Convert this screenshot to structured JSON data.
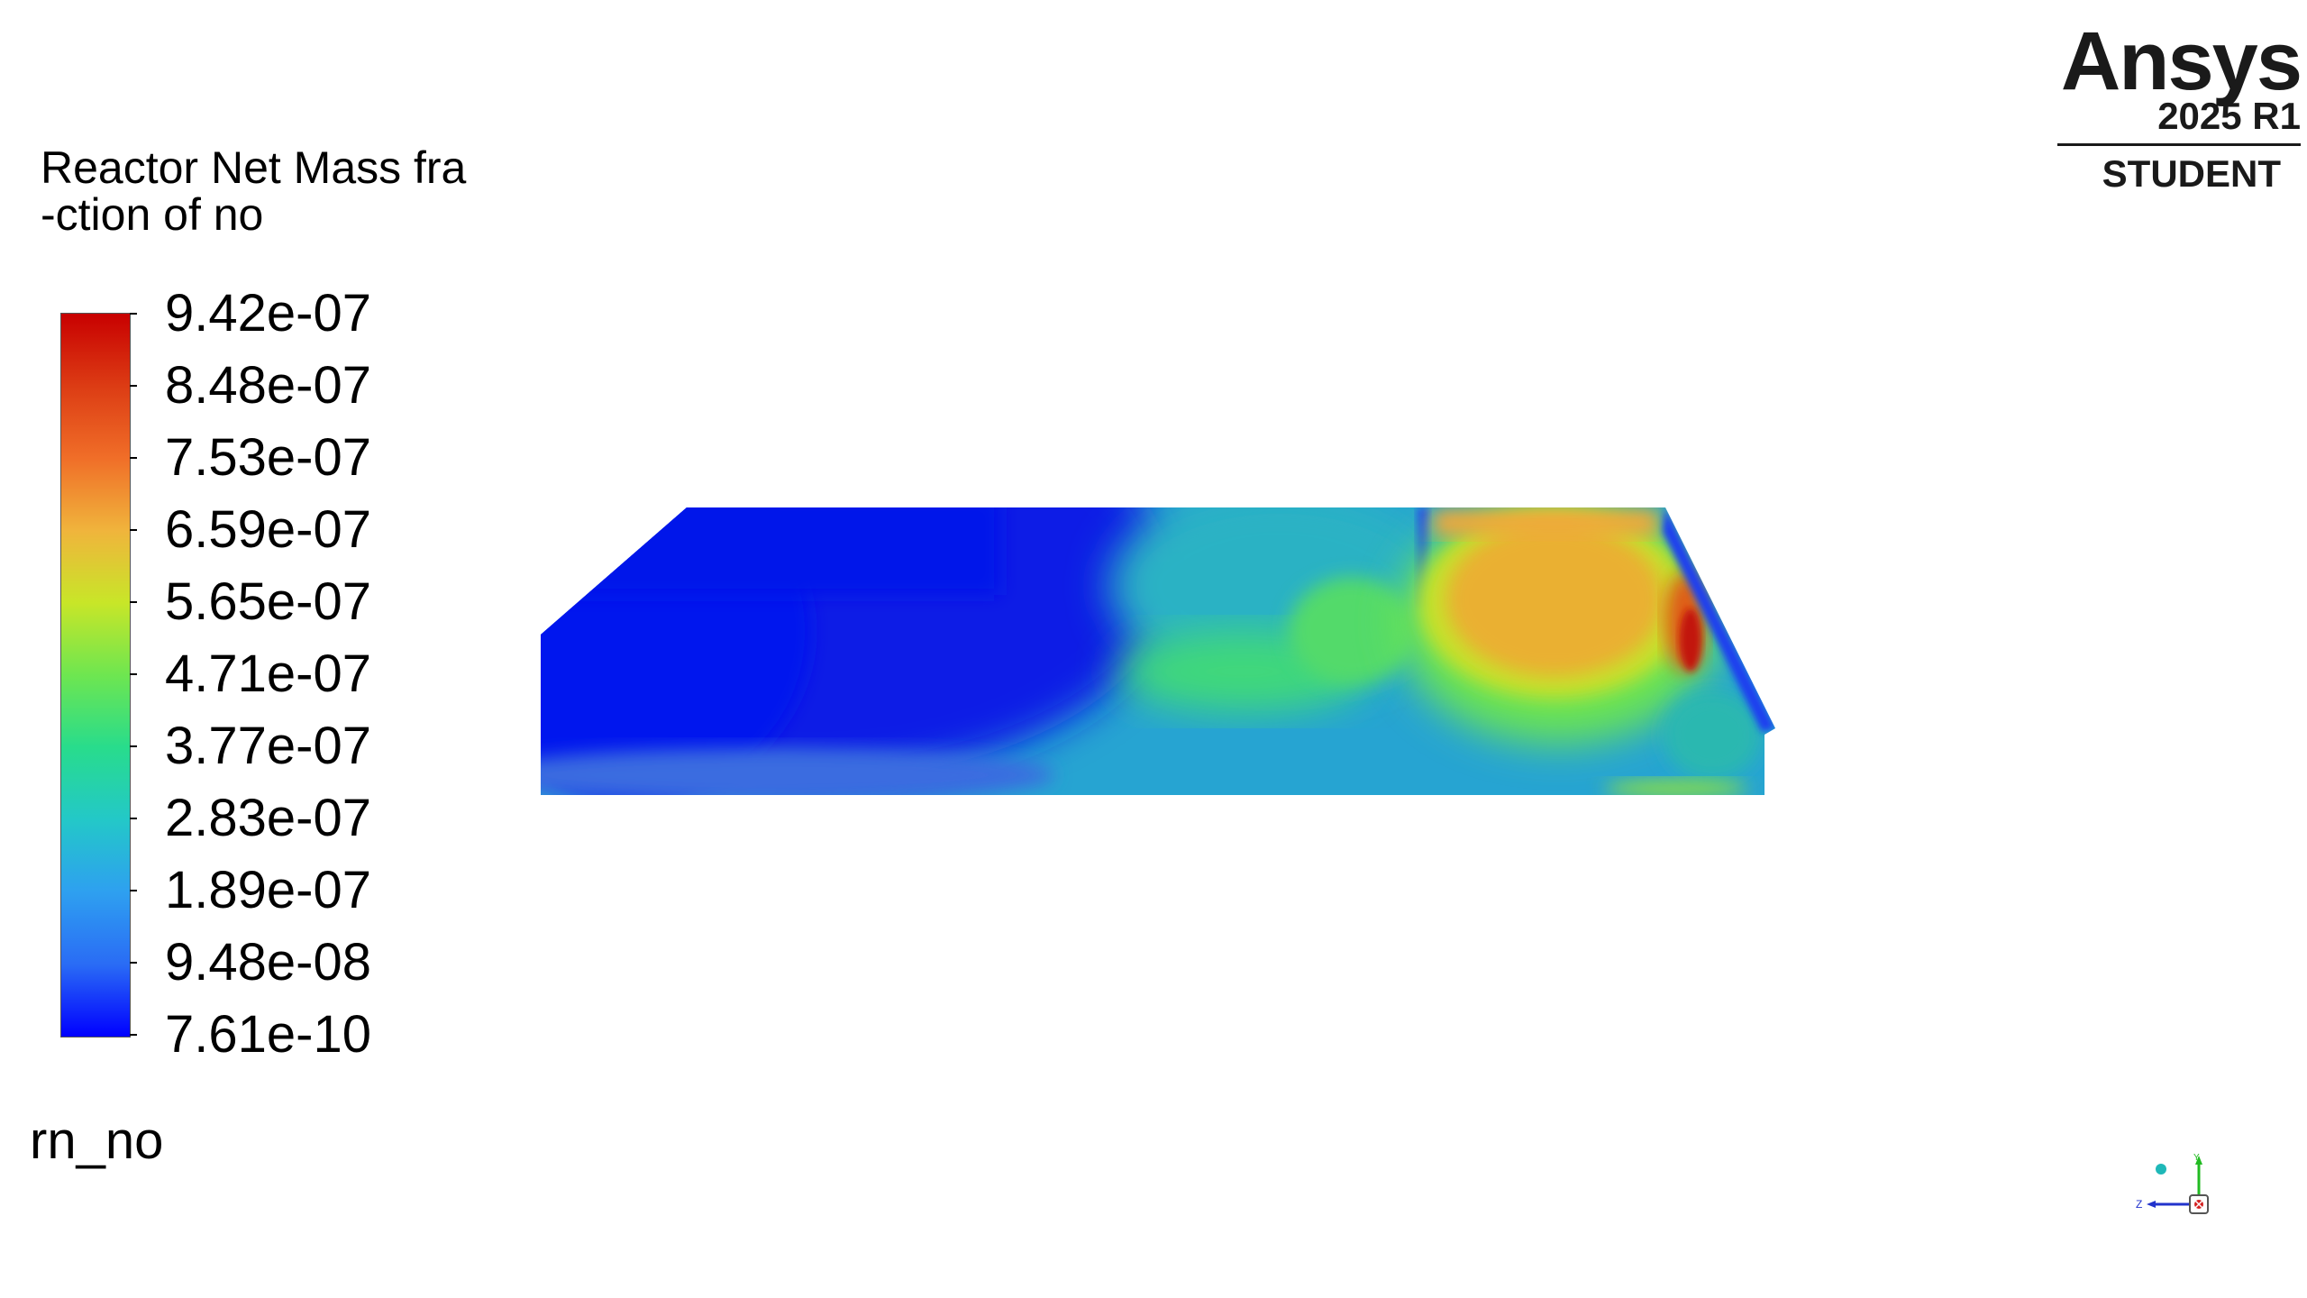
{
  "legend": {
    "title": "Reactor Net Mass fra\n-ction of no",
    "ticks": [
      "9.42e-07",
      "8.48e-07",
      "7.53e-07",
      "6.59e-07",
      "5.65e-07",
      "4.71e-07",
      "3.77e-07",
      "2.83e-07",
      "1.89e-07",
      "9.48e-08",
      "7.61e-10"
    ],
    "colormap_colors": [
      "#0000ff",
      "#2a6cf5",
      "#2ea0f0",
      "#23c8c8",
      "#28dc8c",
      "#6ee650",
      "#c8e628",
      "#f0b43c",
      "#f06e28",
      "#dc3c14",
      "#c80000"
    ]
  },
  "variable_name": "rn_no",
  "logo": {
    "brand": "Ansys",
    "version": "2025 R1",
    "edition": "STUDENT"
  },
  "triad": {
    "y_label": "Y",
    "z_label": "Z",
    "icon": "coordinate-triad-icon"
  },
  "icons": {
    "logo": "ansys-logo-icon"
  }
}
